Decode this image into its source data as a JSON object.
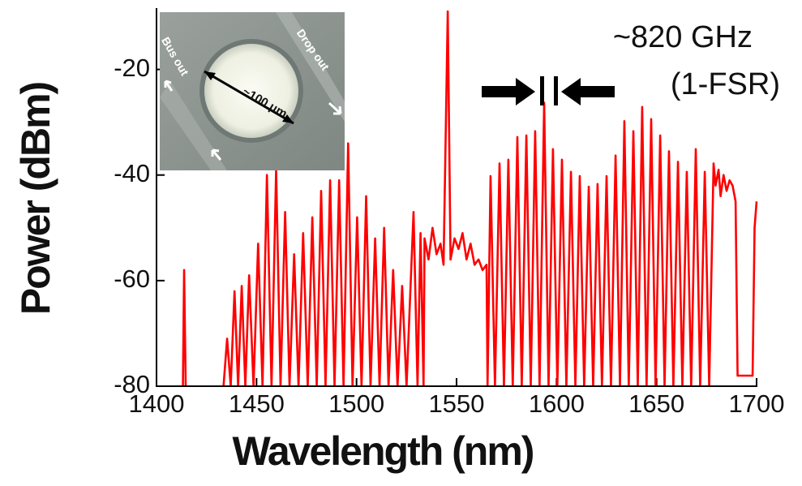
{
  "chart_data": {
    "type": "line",
    "title": null,
    "xlabel": "Wavelength (nm)",
    "ylabel": "Power (dBm)",
    "annotations": [
      "~820 GHz",
      "(1-FSR)"
    ],
    "inset_labels": [
      "Bus out",
      "Drop out",
      "~100 μm"
    ],
    "color": "#ff0000",
    "xlim": [
      1400,
      1700
    ],
    "ylim": [
      -80,
      -9
    ],
    "xticks": [
      1400,
      1450,
      1500,
      1550,
      1600,
      1650,
      1700
    ],
    "yticks": [
      -80,
      -60,
      -40,
      -20
    ],
    "x": [
      1413.2,
      1413.8,
      1414.6,
      1416,
      1433.5,
      1435.3,
      1437.1,
      1439.0,
      1440.8,
      1442.6,
      1444.4,
      1446.3,
      1448.5,
      1450.8,
      1453.0,
      1455.2,
      1457.5,
      1459.8,
      1462.0,
      1464.3,
      1466.5,
      1468.8,
      1471.0,
      1473.3,
      1475.6,
      1477.9,
      1480.1,
      1482.3,
      1484.5,
      1486.8,
      1489.0,
      1491.3,
      1493.5,
      1495.8,
      1498.0,
      1500.3,
      1502.5,
      1504.8,
      1507.0,
      1509.3,
      1511.5,
      1513.8,
      1516.0,
      1518.3,
      1520.5,
      1522.8,
      1525.0,
      1528.5,
      1530.5,
      1532.0,
      1533.5,
      1534,
      1536,
      1538,
      1540,
      1542,
      1543.5,
      1545.6,
      1547,
      1549,
      1551,
      1553,
      1555,
      1557,
      1559,
      1561,
      1563,
      1565,
      1565.5,
      1567.0,
      1569.2,
      1571.5,
      1573.7,
      1575.9,
      1578.1,
      1580.4,
      1582.6,
      1584.9,
      1587.1,
      1589.3,
      1591.5,
      1593.8,
      1596.0,
      1598.2,
      1600.4,
      1602.7,
      1604.9,
      1607.2,
      1609.4,
      1611.6,
      1613.8,
      1616.1,
      1618.3,
      1620.5,
      1622.7,
      1625.0,
      1627.2,
      1629.5,
      1631.7,
      1633.9,
      1636.1,
      1638.4,
      1640.6,
      1642.8,
      1645.0,
      1647.3,
      1649.5,
      1651.8,
      1654.0,
      1656.2,
      1658.4,
      1660.7,
      1662.9,
      1665.1,
      1667.3,
      1669.6,
      1671.8,
      1674.1,
      1676.3,
      1678.5,
      1679.5,
      1681,
      1682,
      1683.5,
      1685,
      1686.5,
      1688,
      1689.5,
      1690.5,
      1698,
      1699,
      1700
    ],
    "values": [
      -80,
      -58,
      -80,
      null,
      -80,
      -71,
      -80,
      -62,
      -80,
      -61,
      -80,
      -59,
      -80,
      -53,
      -80,
      -40,
      -80,
      -39,
      -80,
      -47,
      -80,
      -55,
      -80,
      -51,
      -80,
      -48,
      -80,
      -43,
      -80,
      -41,
      -80,
      -41,
      -80,
      -34,
      -80,
      -48,
      -80,
      -44,
      -80,
      -52,
      -80,
      -50,
      -80,
      -58,
      -80,
      -61,
      -80,
      -47,
      -80,
      -51,
      -80,
      -52,
      -56,
      -50,
      -55,
      -53,
      -57,
      -9,
      -56,
      -52,
      -54,
      -51,
      -56,
      -53,
      -57,
      -56,
      -58,
      -57,
      -80,
      -40.2,
      -80,
      -37.8,
      -80,
      -37.1,
      -80,
      -32.8,
      -80,
      -32.5,
      -80,
      -31.7,
      -80,
      -26.3,
      -80,
      -35.1,
      -80,
      -37.1,
      -80,
      -39.4,
      -80,
      -40.2,
      -80,
      -42.2,
      -80,
      -41.7,
      -80,
      -40.2,
      -80,
      -36.3,
      -80,
      -29.8,
      -80,
      -31.7,
      -80,
      -27.1,
      -80,
      -29.4,
      -80,
      -32.5,
      -80,
      -35.5,
      -80,
      -37.5,
      -80,
      -39.4,
      -80,
      -35.1,
      -80,
      -39.4,
      -80,
      -37.8,
      -42,
      -39,
      -44,
      -40,
      -43,
      -41,
      -42,
      -45,
      -78,
      -78,
      -50,
      -45
    ]
  }
}
